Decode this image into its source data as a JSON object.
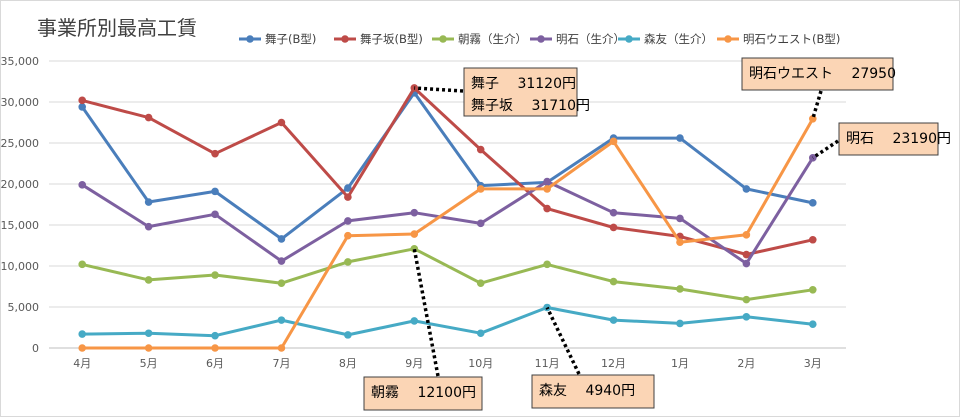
{
  "chart_data": {
    "type": "line",
    "title": "事業所別最高工賃",
    "categories": [
      "4月",
      "5月",
      "6月",
      "7月",
      "8月",
      "9月",
      "10月",
      "11月",
      "12月",
      "1月",
      "2月",
      "3月"
    ],
    "ylim": [
      0,
      35000
    ],
    "yticks": [
      "0",
      "5,000",
      "10,000",
      "15,000",
      "20,000",
      "25,000",
      "30,000",
      "35,000"
    ],
    "ytick_values": [
      0,
      5000,
      10000,
      15000,
      20000,
      25000,
      30000,
      35000
    ],
    "grid": true,
    "legend_position": "top",
    "series": [
      {
        "name": "舞子(B型)",
        "color": "#4a7ebb",
        "values": [
          29400,
          17800,
          19100,
          13300,
          19500,
          31120,
          19800,
          20200,
          25600,
          25600,
          19400,
          17700
        ]
      },
      {
        "name": "舞子坂(B型)",
        "color": "#be4b48",
        "values": [
          30200,
          28100,
          23700,
          27500,
          18400,
          31710,
          24200,
          17000,
          14700,
          13600,
          11400,
          13200
        ]
      },
      {
        "name": "朝霧（生介）",
        "color": "#98b954",
        "values": [
          10200,
          8300,
          8900,
          7900,
          10500,
          12100,
          7900,
          10200,
          8100,
          7200,
          5900,
          7100
        ]
      },
      {
        "name": "明石（生介）",
        "color": "#7d60a0",
        "values": [
          19900,
          14800,
          16300,
          10600,
          15500,
          16500,
          15200,
          20300,
          16500,
          15800,
          10300,
          23190
        ]
      },
      {
        "name": "森友（生介）",
        "color": "#46aac5",
        "values": [
          1700,
          1800,
          1500,
          3400,
          1600,
          3300,
          1800,
          4940,
          3400,
          3000,
          3800,
          2900
        ]
      },
      {
        "name": "明石ウエスト(B型)",
        "color": "#f79646",
        "values": [
          0,
          0,
          0,
          0,
          13700,
          13900,
          19400,
          19400,
          25200,
          12900,
          13800,
          27950
        ]
      }
    ],
    "annotations": [
      {
        "id": "maiko",
        "lines": [
          "舞子　 31120円",
          "舞子坂　 31710円"
        ]
      },
      {
        "id": "akashi-west",
        "lines": [
          "明石ウエスト　 27950"
        ]
      },
      {
        "id": "akashi",
        "lines": [
          "明石　 23190円"
        ]
      },
      {
        "id": "asagiri",
        "lines": [
          "朝霧　 12100円"
        ]
      },
      {
        "id": "moritomo",
        "lines": [
          "森友　 4940円"
        ]
      }
    ]
  }
}
